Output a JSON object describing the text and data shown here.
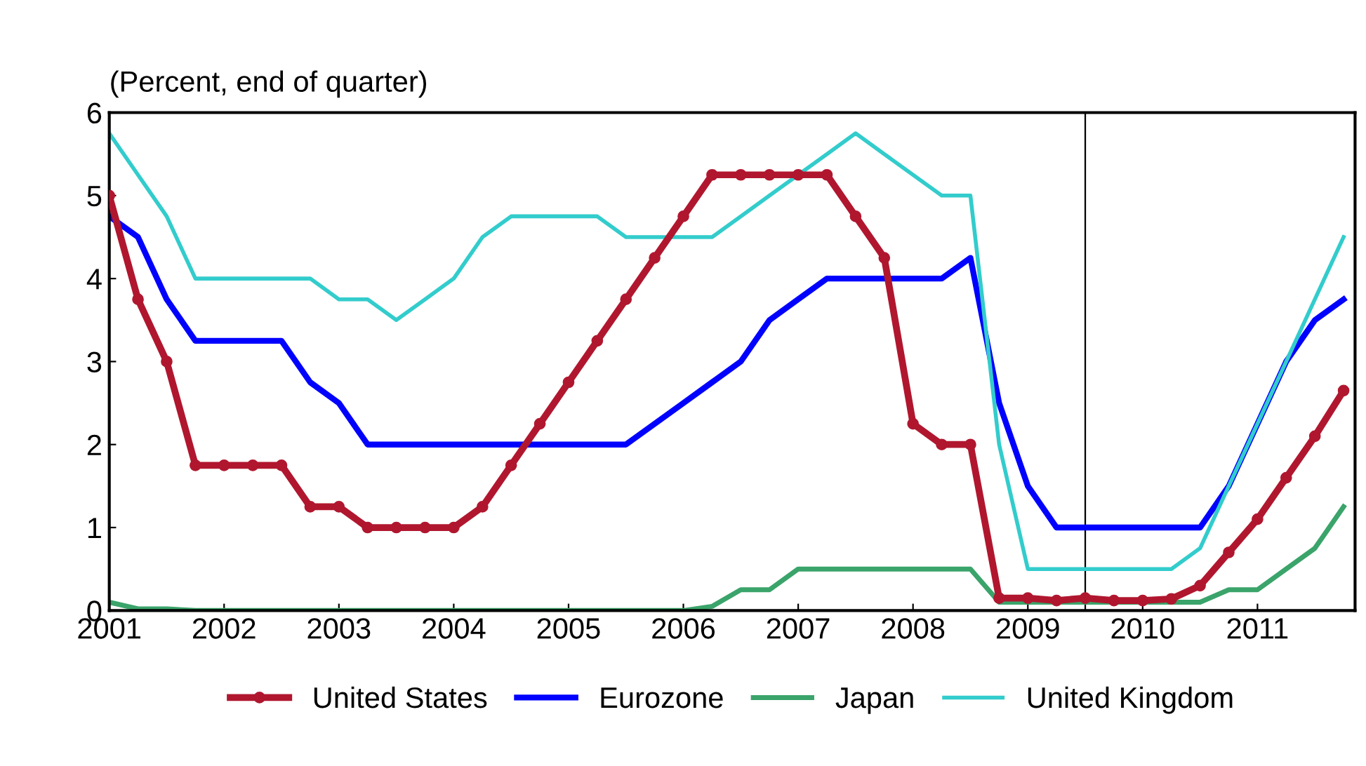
{
  "chart_data": {
    "type": "line",
    "ylabel": "(Percent, end of quarter)",
    "x": [
      2001,
      2001.25,
      2001.5,
      2001.75,
      2002,
      2002.25,
      2002.5,
      2002.75,
      2003,
      2003.25,
      2003.5,
      2003.75,
      2004,
      2004.25,
      2004.5,
      2004.75,
      2005,
      2005.25,
      2005.5,
      2005.75,
      2006,
      2006.25,
      2006.5,
      2006.75,
      2007,
      2007.25,
      2007.5,
      2007.75,
      2008,
      2008.25,
      2008.5,
      2008.75,
      2009,
      2009.25,
      2009.5,
      2009.75,
      2010,
      2010.25,
      2010.5,
      2010.75,
      2011,
      2011.25,
      2011.5,
      2011.75
    ],
    "series": [
      {
        "name": "United States",
        "color": "#b0172f",
        "marker": "circle",
        "values": [
          5.0,
          3.75,
          3.0,
          1.75,
          1.75,
          1.75,
          1.75,
          1.25,
          1.25,
          1.0,
          1.0,
          1.0,
          1.0,
          1.25,
          1.75,
          2.25,
          2.75,
          3.25,
          3.75,
          4.25,
          4.75,
          5.25,
          5.25,
          5.25,
          5.25,
          5.25,
          4.75,
          4.25,
          2.25,
          2.0,
          2.0,
          0.15,
          0.15,
          0.12,
          0.15,
          0.12,
          0.12,
          0.14,
          0.3,
          0.7,
          1.1,
          1.6,
          2.1,
          2.65
        ]
      },
      {
        "name": "Eurozone",
        "color": "#0000ff",
        "marker": "none",
        "values": [
          4.75,
          4.5,
          3.75,
          3.25,
          3.25,
          3.25,
          3.25,
          2.75,
          2.5,
          2.0,
          2.0,
          2.0,
          2.0,
          2.0,
          2.0,
          2.0,
          2.0,
          2.0,
          2.0,
          2.25,
          2.5,
          2.75,
          3.0,
          3.5,
          3.75,
          4.0,
          4.0,
          4.0,
          4.0,
          4.0,
          4.25,
          2.5,
          1.5,
          1.0,
          1.0,
          1.0,
          1.0,
          1.0,
          1.0,
          1.5,
          2.25,
          3.0,
          3.5,
          3.75
        ]
      },
      {
        "name": "Japan",
        "color": "#3aa46a",
        "marker": "none",
        "values": [
          0.1,
          0.02,
          0.02,
          0,
          0,
          0,
          0,
          0,
          0,
          0,
          0,
          0,
          0,
          0,
          0,
          0,
          0,
          0,
          0,
          0,
          0,
          0.05,
          0.25,
          0.25,
          0.5,
          0.5,
          0.5,
          0.5,
          0.5,
          0.5,
          0.5,
          0.1,
          0.1,
          0.1,
          0.1,
          0.1,
          0.1,
          0.1,
          0.1,
          0.25,
          0.25,
          0.5,
          0.75,
          1.25
        ]
      },
      {
        "name": "United Kingdom",
        "color": "#33cccc",
        "marker": "none",
        "values": [
          5.75,
          5.25,
          4.75,
          4.0,
          4.0,
          4.0,
          4.0,
          4.0,
          3.75,
          3.75,
          3.5,
          3.75,
          4.0,
          4.5,
          4.75,
          4.75,
          4.75,
          4.75,
          4.5,
          4.5,
          4.5,
          4.5,
          4.75,
          5.0,
          5.25,
          5.5,
          5.75,
          5.5,
          5.25,
          5.0,
          5.0,
          2.0,
          0.5,
          0.5,
          0.5,
          0.5,
          0.5,
          0.5,
          0.75,
          1.5,
          2.25,
          3.0,
          3.75,
          4.5
        ]
      }
    ],
    "xlim": [
      2001,
      2011.85
    ],
    "xticks": [
      2001,
      2002,
      2003,
      2004,
      2005,
      2006,
      2007,
      2008,
      2009,
      2010,
      2011
    ],
    "ylim": [
      0,
      6
    ],
    "yticks": [
      0,
      1,
      2,
      3,
      4,
      5,
      6
    ],
    "ref_lines": [
      {
        "axis": "x",
        "value": 2009.5,
        "color": "#000000"
      }
    ],
    "grid": false,
    "legend": "bottom",
    "line_style": "solid"
  }
}
